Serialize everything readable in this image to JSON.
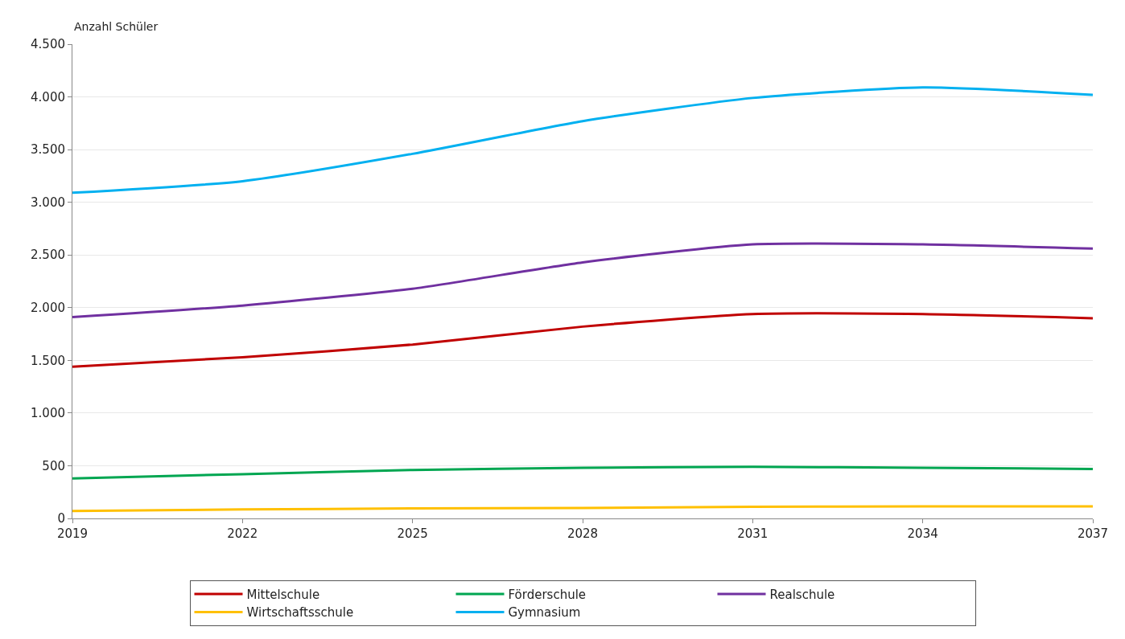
{
  "chart_data": {
    "type": "line",
    "ylabel": "Anzahl Schüler",
    "x": [
      2019,
      2022,
      2025,
      2028,
      2031,
      2034,
      2037
    ],
    "xlim": [
      2019,
      2037
    ],
    "xticks": [
      2019,
      2022,
      2025,
      2028,
      2031,
      2034,
      2037
    ],
    "ylim": [
      0,
      4500
    ],
    "yticks": [
      0,
      500,
      {
        "value": 1000,
        "label": "1.000"
      },
      {
        "value": 1500,
        "label": "1.500"
      },
      {
        "value": 2000,
        "label": "2.000"
      },
      {
        "value": 2500,
        "label": "2.500"
      },
      {
        "value": 3000,
        "label": "3.000"
      },
      {
        "value": 3500,
        "label": "3.500"
      },
      {
        "value": 4000,
        "label": "4.000"
      },
      {
        "value": 4500,
        "label": "4.500"
      }
    ],
    "grid": "y",
    "legend": "bottom",
    "marker": "none",
    "line_style": "solid",
    "series": [
      {
        "name": "Mittelschule",
        "color": "#c00000",
        "values": [
          1440,
          1530,
          1650,
          1820,
          1940,
          1940,
          1900
        ]
      },
      {
        "name": "Förderschule",
        "color": "#00a651",
        "values": [
          380,
          420,
          460,
          480,
          490,
          480,
          470
        ]
      },
      {
        "name": "Realschule",
        "color": "#7030a0",
        "values": [
          1910,
          2020,
          2180,
          2430,
          2600,
          2600,
          2560
        ]
      },
      {
        "name": "Wirtschaftsschule",
        "color": "#ffc000",
        "values": [
          70,
          85,
          95,
          100,
          110,
          115,
          115
        ]
      },
      {
        "name": "Gymnasium",
        "color": "#00b0f0",
        "values": [
          3090,
          3200,
          3460,
          3770,
          3990,
          4090,
          4020
        ]
      }
    ]
  }
}
